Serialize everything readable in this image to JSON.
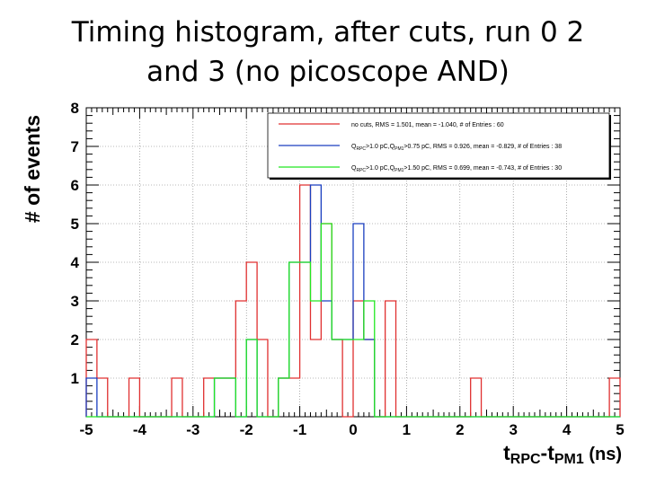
{
  "title": {
    "line1": "Timing histogram, after cuts, run 0 2",
    "line2": "and 3 (no picoscope AND)"
  },
  "chart_data": {
    "type": "histogram",
    "xlabel": "t_RPC - t_PM1 (ns)",
    "xlabel_parts": {
      "t1": "t",
      "s1": "RPC",
      "dash": "-t",
      "s2": "PM1",
      "unit": " (ns)"
    },
    "ylabel": "# of events",
    "xlim": [
      -5,
      5
    ],
    "ylim": [
      0,
      8
    ],
    "x_ticks": [
      -5,
      -4,
      -3,
      -2,
      -1,
      0,
      1,
      2,
      3,
      4,
      5
    ],
    "y_ticks": [
      1,
      2,
      3,
      4,
      5,
      6,
      7,
      8
    ],
    "bin_edges": [
      -5.0,
      -4.8,
      -4.6,
      -4.4,
      -4.2,
      -4.0,
      -3.8,
      -3.6,
      -3.4,
      -3.2,
      -3.0,
      -2.8,
      -2.6,
      -2.4,
      -2.2,
      -2.0,
      -1.8,
      -1.6,
      -1.4,
      -1.2,
      -1.0,
      -0.8,
      -0.6,
      -0.4,
      -0.2,
      0.0,
      0.2,
      0.4,
      0.6,
      0.8,
      1.0,
      1.2,
      1.4,
      1.6,
      1.8,
      2.0,
      2.2,
      2.4,
      2.6,
      2.8,
      3.0,
      3.2,
      3.4,
      3.6,
      3.8,
      4.0,
      4.2,
      4.4,
      4.6,
      4.8,
      5.0
    ],
    "grid": true,
    "legend_position": "top-right",
    "series": [
      {
        "color": "#e03030",
        "legend": {
          "main": "no cuts, RMS = 1.501, mean = -1.040, # of Entries : 60"
        },
        "values": [
          2,
          1,
          0,
          0,
          1,
          0,
          0,
          0,
          1,
          0,
          0,
          1,
          1,
          1,
          3,
          4,
          2,
          0,
          1,
          1,
          6,
          2,
          5,
          2,
          0,
          3,
          2,
          0,
          3,
          0,
          0,
          0,
          0,
          0,
          0,
          0,
          1,
          0,
          0,
          0,
          0,
          0,
          0,
          0,
          0,
          0,
          0,
          0,
          0,
          1
        ]
      },
      {
        "color": "#1a3fbf",
        "legend": {
          "q": "Q",
          "qs": "RPC",
          "a": ">1.0 pC,Q",
          "bs": "PM1",
          "rest": ">0.75 pC, RMS = 0.926, mean = -0.829, # of Entries : 38"
        },
        "values": [
          1,
          0,
          0,
          0,
          0,
          0,
          0,
          0,
          0,
          0,
          0,
          0,
          1,
          1,
          0,
          2,
          0,
          0,
          1,
          4,
          4,
          6,
          3,
          2,
          2,
          5,
          2,
          0,
          0,
          0,
          0,
          0,
          0,
          0,
          0,
          0,
          0,
          0,
          0,
          0,
          0,
          0,
          0,
          0,
          0,
          0,
          0,
          0,
          0,
          0
        ]
      },
      {
        "color": "#22e822",
        "legend": {
          "q": "Q",
          "qs": "RPC",
          "a": ">1.0 pC,Q",
          "bs": "PM1",
          "rest": ">1.50 pC, RMS = 0.699, mean = -0.743, # of Entries : 30"
        },
        "values": [
          0,
          0,
          0,
          0,
          0,
          0,
          0,
          0,
          0,
          0,
          0,
          0,
          1,
          1,
          0,
          2,
          0,
          0,
          1,
          4,
          4,
          3,
          5,
          2,
          2,
          2,
          3,
          0,
          0,
          0,
          0,
          0,
          0,
          0,
          0,
          0,
          0,
          0,
          0,
          0,
          0,
          0,
          0,
          0,
          0,
          0,
          0,
          0,
          0,
          0
        ]
      }
    ]
  }
}
